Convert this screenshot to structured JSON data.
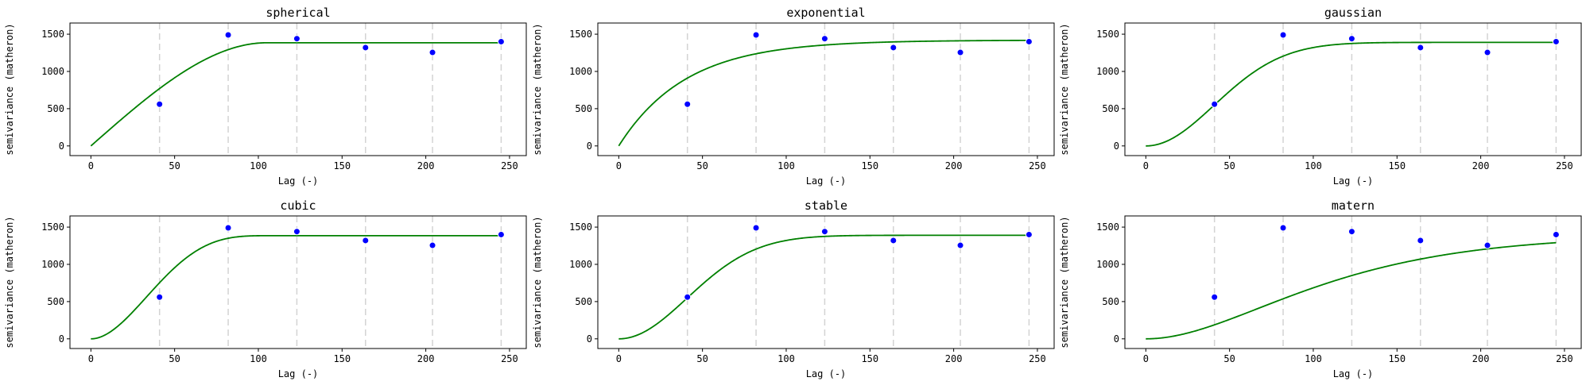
{
  "chart_data": [
    {
      "type": "line",
      "title": "spherical",
      "xlabel": "Lag (-)",
      "ylabel": "semivariance (matheron)",
      "xlim": [
        -12.5,
        260
      ],
      "ylim": [
        -130,
        1650
      ],
      "xticks": [
        0,
        50,
        100,
        150,
        200,
        250
      ],
      "yticks": [
        0,
        500,
        1000,
        1500
      ],
      "bins": [
        41,
        82,
        123,
        164,
        204,
        245
      ],
      "points": {
        "x": [
          41,
          82,
          123,
          164,
          204,
          245
        ],
        "y": [
          560,
          1490,
          1440,
          1320,
          1255,
          1400
        ]
      },
      "model": {
        "kind": "spherical",
        "nugget": 0,
        "sill": 1385,
        "range": 105
      }
    },
    {
      "type": "line",
      "title": "exponential",
      "xlabel": "Lag (-)",
      "ylabel": "semivariance (matheron)",
      "xlim": [
        -12.5,
        260
      ],
      "ylim": [
        -130,
        1650
      ],
      "xticks": [
        0,
        50,
        100,
        150,
        200,
        250
      ],
      "yticks": [
        0,
        500,
        1000,
        1500
      ],
      "bins": [
        41,
        82,
        123,
        164,
        204,
        245
      ],
      "points": {
        "x": [
          41,
          82,
          123,
          164,
          204,
          245
        ],
        "y": [
          560,
          1490,
          1440,
          1320,
          1255,
          1400
        ]
      },
      "model": {
        "kind": "exponential",
        "nugget": 0,
        "sill": 1420,
        "range": 120
      }
    },
    {
      "type": "line",
      "title": "gaussian",
      "xlabel": "Lag (-)",
      "ylabel": "semivariance (matheron)",
      "xlim": [
        -12.5,
        260
      ],
      "ylim": [
        -130,
        1650
      ],
      "xticks": [
        0,
        50,
        100,
        150,
        200,
        250
      ],
      "yticks": [
        0,
        500,
        1000,
        1500
      ],
      "bins": [
        41,
        82,
        123,
        164,
        204,
        245
      ],
      "points": {
        "x": [
          41,
          82,
          123,
          164,
          204,
          245
        ],
        "y": [
          560,
          1490,
          1440,
          1320,
          1255,
          1400
        ]
      },
      "model": {
        "kind": "gaussian",
        "nugget": 0,
        "sill": 1390,
        "range": 100
      }
    },
    {
      "type": "line",
      "title": "cubic",
      "xlabel": "Lag (-)",
      "ylabel": "semivariance (matheron)",
      "xlim": [
        -12.5,
        260
      ],
      "ylim": [
        -130,
        1650
      ],
      "xticks": [
        0,
        50,
        100,
        150,
        200,
        250
      ],
      "yticks": [
        0,
        500,
        1000,
        1500
      ],
      "bins": [
        41,
        82,
        123,
        164,
        204,
        245
      ],
      "points": {
        "x": [
          41,
          82,
          123,
          164,
          204,
          245
        ],
        "y": [
          560,
          1490,
          1440,
          1320,
          1255,
          1400
        ]
      },
      "model": {
        "kind": "cubic",
        "nugget": 0,
        "sill": 1385,
        "range": 110
      }
    },
    {
      "type": "line",
      "title": "stable",
      "xlabel": "Lag (-)",
      "ylabel": "semivariance (matheron)",
      "xlim": [
        -12.5,
        260
      ],
      "ylim": [
        -130,
        1650
      ],
      "xticks": [
        0,
        50,
        100,
        150,
        200,
        250
      ],
      "yticks": [
        0,
        500,
        1000,
        1500
      ],
      "bins": [
        41,
        82,
        123,
        164,
        204,
        245
      ],
      "points": {
        "x": [
          41,
          82,
          123,
          164,
          204,
          245
        ],
        "y": [
          560,
          1490,
          1440,
          1320,
          1255,
          1400
        ]
      },
      "model": {
        "kind": "stable",
        "nugget": 0,
        "sill": 1390,
        "range": 100,
        "shape": 2
      }
    },
    {
      "type": "line",
      "title": "matern",
      "xlabel": "Lag (-)",
      "ylabel": "semivariance (matheron)",
      "xlim": [
        -12.5,
        260
      ],
      "ylim": [
        -130,
        1650
      ],
      "xticks": [
        0,
        50,
        100,
        150,
        200,
        250
      ],
      "yticks": [
        0,
        500,
        1000,
        1500
      ],
      "bins": [
        41,
        82,
        123,
        164,
        204,
        245
      ],
      "points": {
        "x": [
          41,
          82,
          123,
          164,
          204,
          245
        ],
        "y": [
          560,
          1490,
          1440,
          1320,
          1255,
          1400
        ]
      },
      "model": {
        "kind": "matern",
        "nugget": 0,
        "sill": 1390,
        "range": 100,
        "smoothness": 2
      }
    }
  ],
  "colors": {
    "model_line": "#008000",
    "points_fill": "#0000ff",
    "points_edge": "#ffffff",
    "bin_lines": "#d3d3d3",
    "axes": "#000000"
  }
}
